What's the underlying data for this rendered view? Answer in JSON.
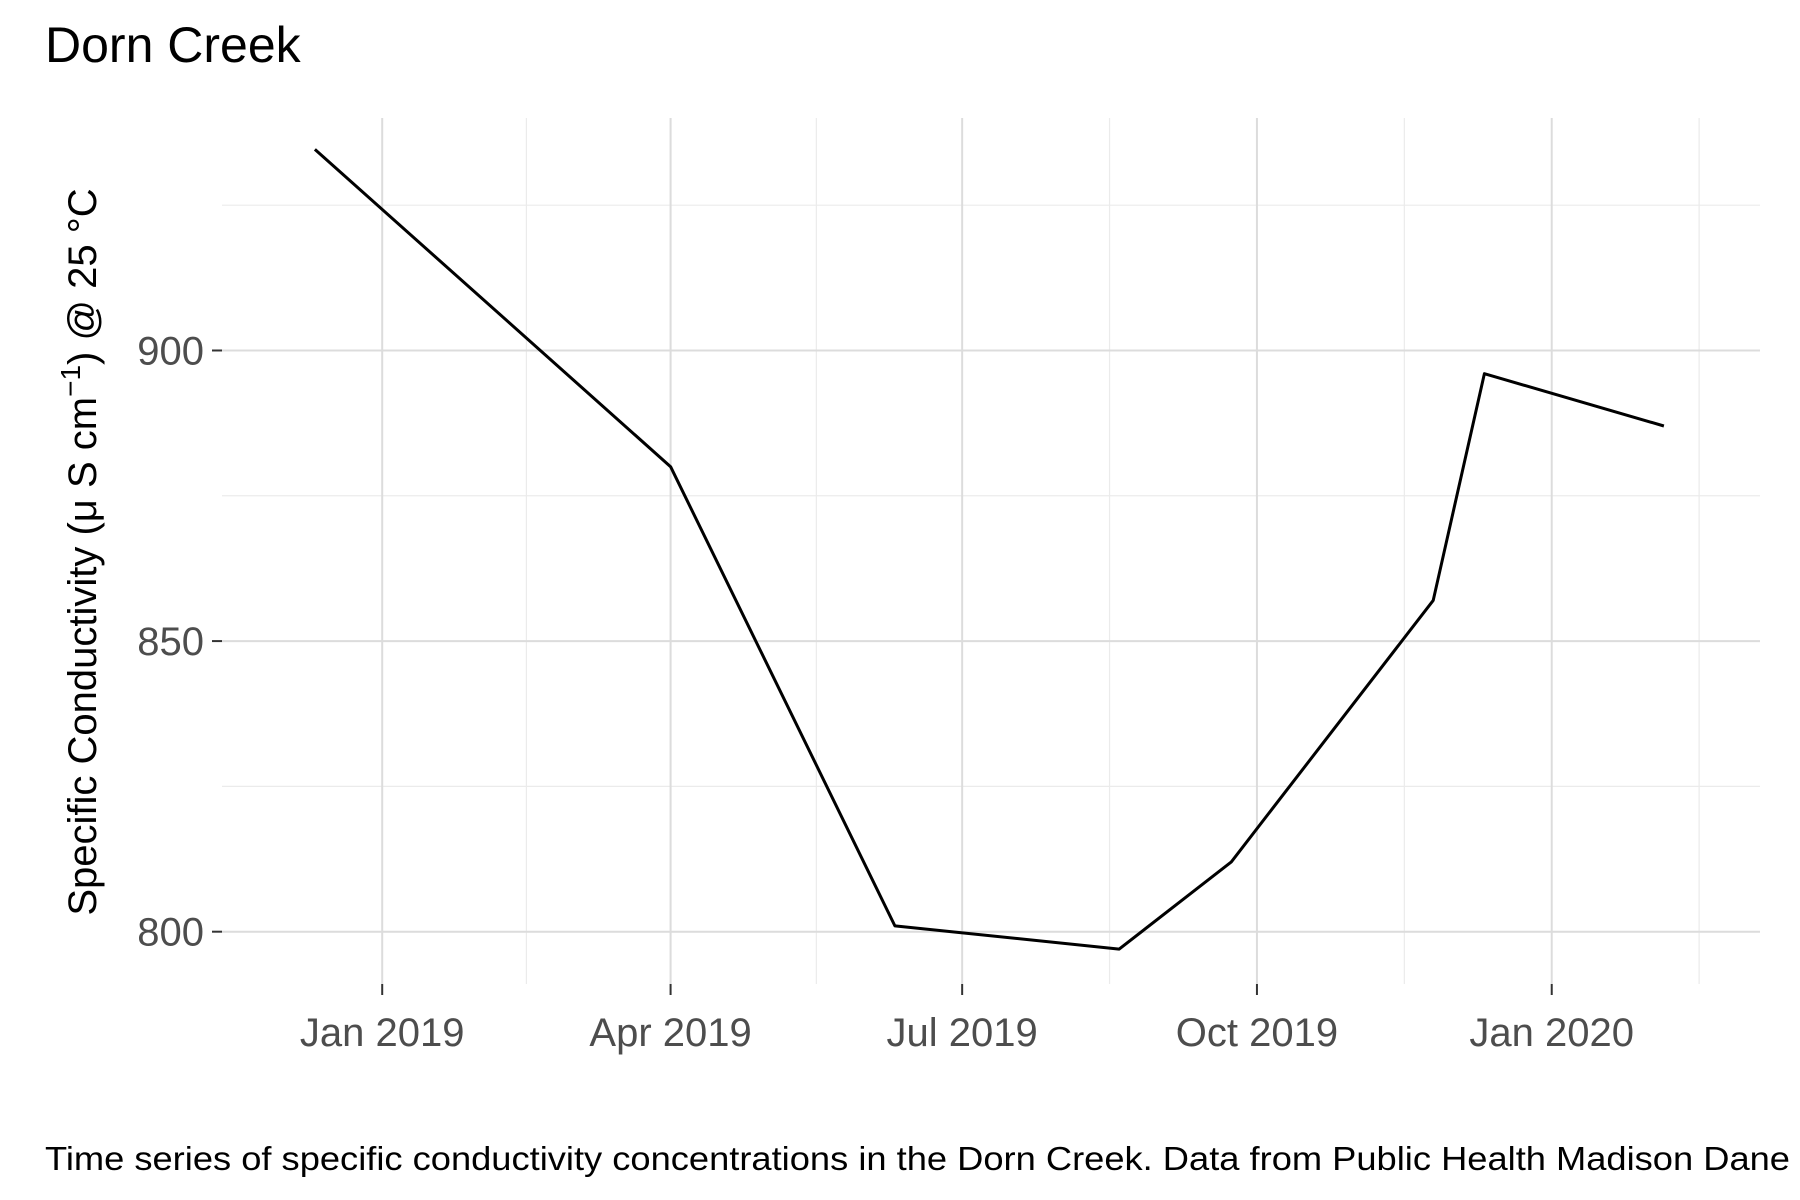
{
  "chart_data": {
    "type": "line",
    "title": "Dorn Creek",
    "ylabel": {
      "main": "Specific Conductivity (",
      "mu": "μ",
      "unit": " S cm",
      "sup": "−1",
      "end": ") @ 25 °C"
    },
    "xlabel": "",
    "caption": "Time series of specific conductivity concentrations in the Dorn Creek. Data from Public Health Madison Dane",
    "x_ticks": [
      "Jan 2019",
      "Apr 2019",
      "Jul 2019",
      "Oct 2019",
      "Jan 2020"
    ],
    "y_ticks": [
      800,
      850,
      900
    ],
    "ylim": [
      791,
      940
    ],
    "xlim": [
      "2018-11-12",
      "2020-03-06"
    ],
    "grid": true,
    "series": [
      {
        "color": "#000000",
        "x": [
          "2018-12-11",
          "2019-04-01",
          "2019-06-10",
          "2019-08-19",
          "2019-09-23",
          "2019-10-21",
          "2019-11-25",
          "2019-12-11",
          "2020-02-05"
        ],
        "y": [
          934.6,
          880,
          801,
          797,
          812,
          832,
          857,
          896,
          887
        ]
      }
    ]
  }
}
